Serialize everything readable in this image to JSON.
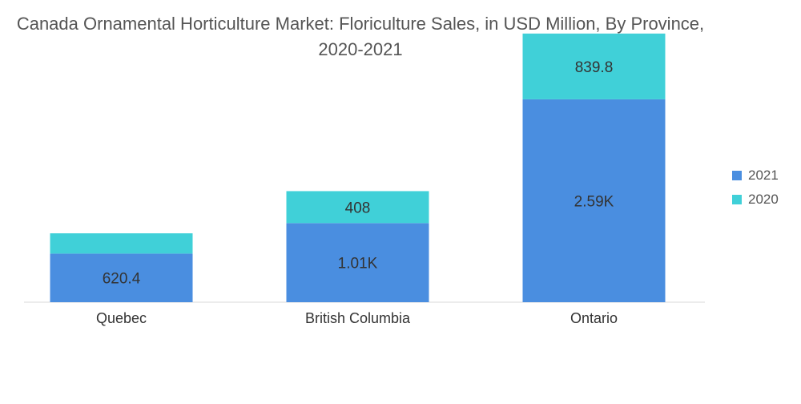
{
  "chart_data": {
    "type": "bar",
    "stacked": true,
    "title": "Canada Ornamental Horticulture Market: Floriculture Sales, in USD Million, By Province, 2020-2021",
    "categories": [
      "Quebec",
      "British Columbia",
      "Ontario"
    ],
    "series": [
      {
        "name": "2021",
        "values": [
          620.4,
          1010,
          2590
        ],
        "labels": [
          "620.4",
          "1.01K",
          "2.59K"
        ],
        "color": "#4a8ee0"
      },
      {
        "name": "2020",
        "values": [
          259,
          408,
          839.8
        ],
        "labels": [
          "",
          "408",
          "839.8"
        ],
        "color": "#40d0d8"
      }
    ],
    "xlabel": "",
    "ylabel": "",
    "ylim": [
      0,
      3500
    ],
    "grid": false,
    "legend_position": "right"
  }
}
